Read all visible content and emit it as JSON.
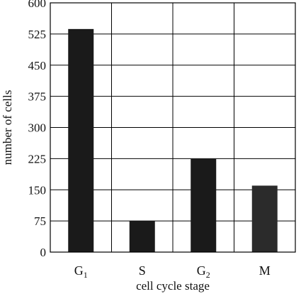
{
  "chart_data": {
    "type": "bar",
    "categories": [
      {
        "base": "G",
        "sub": "1"
      },
      {
        "base": "S",
        "sub": ""
      },
      {
        "base": "G",
        "sub": "2"
      },
      {
        "base": "M",
        "sub": ""
      }
    ],
    "values": [
      537,
      75,
      224,
      160
    ],
    "bar_colors": [
      "#1a1a1a",
      "#1a1a1a",
      "#1a1a1a",
      "#2b2b2b"
    ],
    "title": "",
    "xlabel": "cell cycle stage",
    "ylabel": "number of cells",
    "ylim": [
      0,
      600
    ],
    "yticks": [
      0,
      75,
      150,
      225,
      300,
      375,
      450,
      525,
      600
    ],
    "grid": true
  }
}
